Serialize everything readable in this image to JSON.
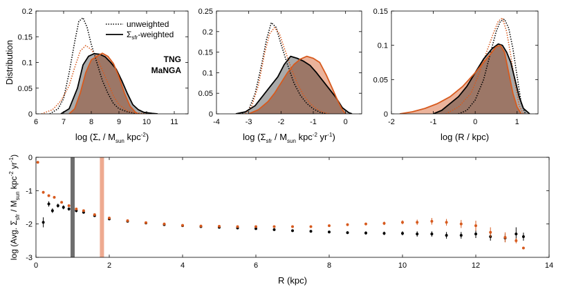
{
  "colors": {
    "tng": "#000000",
    "manga": "#d75a1e",
    "tng_fill": "#9a9a9a",
    "manga_fill": "#e8a68a",
    "overlap_fill": "#94705f",
    "tng_band": "#6e6e6e",
    "manga_band": "#eeaa90"
  },
  "legend": {
    "unweighted": "unweighted",
    "weighted_sigma": "Σ",
    "weighted_sub": "sfr",
    "weighted_rest": "-weighted",
    "tng": "TNG",
    "manga": "MaNGA"
  },
  "chart_data": [
    {
      "type": "area",
      "title": "",
      "ylabel": "Distribution",
      "xlabel_parts": [
        "log (Σ",
        "*",
        " / M",
        "sun",
        " kpc",
        "-2",
        ")"
      ],
      "xlim": [
        6,
        11.5
      ],
      "ylim": [
        0,
        0.2
      ],
      "xticks": [
        6,
        7,
        8,
        9,
        10,
        11
      ],
      "yticks": [
        0,
        0.05,
        0.1,
        0.15,
        0.2
      ],
      "xtick_labels": [
        "6",
        "7",
        "8",
        "9",
        "10",
        "11"
      ],
      "ytick_labels": [
        "0",
        "0.05",
        "0.1",
        "0.15",
        "0.2"
      ],
      "series": [
        {
          "name": "TNG unweighted",
          "style": "dotted",
          "color": "tng",
          "x": [
            6.5,
            6.8,
            7.0,
            7.2,
            7.4,
            7.55,
            7.7,
            7.85,
            8.0,
            8.2,
            8.4,
            8.6,
            8.8,
            9.0,
            9.3,
            9.6,
            10.0
          ],
          "y": [
            0,
            0.01,
            0.03,
            0.08,
            0.14,
            0.18,
            0.187,
            0.168,
            0.135,
            0.1,
            0.065,
            0.04,
            0.02,
            0.01,
            0.004,
            0.001,
            0
          ]
        },
        {
          "name": "MaNGA unweighted",
          "style": "dotted",
          "color": "manga",
          "x": [
            6.2,
            6.6,
            6.9,
            7.2,
            7.4,
            7.6,
            7.8,
            8.0,
            8.2,
            8.4,
            8.6,
            8.8,
            9.0,
            9.3,
            9.6,
            10.0
          ],
          "y": [
            0,
            0.008,
            0.025,
            0.055,
            0.09,
            0.122,
            0.133,
            0.125,
            0.11,
            0.085,
            0.06,
            0.035,
            0.018,
            0.006,
            0.002,
            0
          ]
        },
        {
          "name": "TNG Σsfr-weighted",
          "style": "solid",
          "color": "tng",
          "fill": "tng_fill",
          "x": [
            6.9,
            7.2,
            7.5,
            7.7,
            7.9,
            8.1,
            8.3,
            8.5,
            8.7,
            8.9,
            9.1,
            9.3,
            9.5,
            9.7,
            9.9,
            10.2,
            10.4
          ],
          "y": [
            0,
            0.01,
            0.05,
            0.095,
            0.112,
            0.117,
            0.116,
            0.111,
            0.1,
            0.087,
            0.065,
            0.04,
            0.018,
            0.008,
            0.003,
            0.001,
            0
          ]
        },
        {
          "name": "MaNGA Σsfr-weighted",
          "style": "solid",
          "color": "manga",
          "fill": "manga_fill",
          "x": [
            7.2,
            7.4,
            7.6,
            7.8,
            8.0,
            8.2,
            8.4,
            8.6,
            8.8,
            9.0,
            9.2,
            9.4,
            9.6,
            9.7
          ],
          "y": [
            0,
            0.01,
            0.04,
            0.08,
            0.105,
            0.112,
            0.118,
            0.112,
            0.098,
            0.072,
            0.04,
            0.015,
            0.003,
            0
          ]
        }
      ]
    },
    {
      "type": "area",
      "title": "",
      "ylabel": "",
      "xlabel_parts": [
        "log (Σ",
        "sfr",
        " / M",
        "sun",
        " kpc",
        "-2",
        " yr",
        "-1",
        ")"
      ],
      "xlim": [
        -4,
        0.5
      ],
      "ylim": [
        0,
        0.25
      ],
      "xticks": [
        -4,
        -3,
        -2,
        -1,
        0
      ],
      "yticks": [
        0,
        0.05,
        0.1,
        0.15,
        0.2,
        0.25
      ],
      "xtick_labels": [
        "-4",
        "-3",
        "-2",
        "-1",
        "0"
      ],
      "ytick_labels": [
        "0",
        "0.05",
        "0.1",
        "0.15",
        "0.2",
        "0.25"
      ],
      "series": [
        {
          "name": "TNG unweighted",
          "style": "dotted",
          "color": "tng",
          "x": [
            -3.2,
            -3.0,
            -2.8,
            -2.6,
            -2.45,
            -2.3,
            -2.15,
            -2.0,
            -1.8,
            -1.6,
            -1.4,
            -1.2,
            -1.0,
            -0.8,
            -0.6
          ],
          "y": [
            0,
            0.01,
            0.05,
            0.12,
            0.18,
            0.222,
            0.21,
            0.17,
            0.12,
            0.075,
            0.045,
            0.025,
            0.012,
            0.004,
            0
          ]
        },
        {
          "name": "MaNGA unweighted",
          "style": "dotted",
          "color": "manga",
          "x": [
            -3.1,
            -2.9,
            -2.7,
            -2.5,
            -2.35,
            -2.2,
            -2.05,
            -1.9,
            -1.7,
            -1.5,
            -1.3,
            -1.1,
            -0.9,
            -0.7,
            -0.5
          ],
          "y": [
            0,
            0.02,
            0.07,
            0.15,
            0.195,
            0.21,
            0.195,
            0.16,
            0.115,
            0.075,
            0.045,
            0.025,
            0.012,
            0.004,
            0
          ]
        },
        {
          "name": "TNG Σsfr-weighted",
          "style": "solid",
          "color": "tng",
          "fill": "tng_fill",
          "x": [
            -3.4,
            -3.1,
            -2.8,
            -2.5,
            -2.3,
            -2.1,
            -1.9,
            -1.7,
            -1.5,
            -1.3,
            -1.1,
            -0.9,
            -0.7,
            -0.5,
            -0.3,
            -0.1,
            0.1,
            0.2
          ],
          "y": [
            0,
            0.005,
            0.02,
            0.05,
            0.07,
            0.09,
            0.12,
            0.14,
            0.135,
            0.128,
            0.118,
            0.1,
            0.08,
            0.06,
            0.04,
            0.015,
            0.003,
            0
          ]
        },
        {
          "name": "MaNGA Σsfr-weighted",
          "style": "solid",
          "color": "manga",
          "fill": "manga_fill",
          "x": [
            -3.0,
            -2.7,
            -2.4,
            -2.2,
            -2.0,
            -1.8,
            -1.6,
            -1.4,
            -1.2,
            -1.0,
            -0.8,
            -0.6,
            -0.4,
            -0.3,
            -0.2,
            -0.1,
            0.0
          ],
          "y": [
            0,
            0.01,
            0.03,
            0.05,
            0.075,
            0.1,
            0.12,
            0.133,
            0.14,
            0.135,
            0.125,
            0.095,
            0.06,
            0.042,
            0.025,
            0.01,
            0
          ]
        }
      ]
    },
    {
      "type": "area",
      "title": "",
      "ylabel": "",
      "xlabel_parts": [
        "log (R / kpc)"
      ],
      "xlim": [
        -2,
        1.5
      ],
      "ylim": [
        0,
        0.15
      ],
      "xticks": [
        -2,
        -1,
        0,
        1
      ],
      "yticks": [
        0,
        0.05,
        0.1,
        0.15
      ],
      "xtick_labels": [
        "-2",
        "-1",
        "0",
        "1"
      ],
      "ytick_labels": [
        "0",
        "0.05",
        "0.1",
        "0.15"
      ],
      "series": [
        {
          "name": "TNG unweighted",
          "style": "dotted",
          "color": "tng",
          "x": [
            -0.4,
            -0.2,
            0.0,
            0.2,
            0.35,
            0.5,
            0.6,
            0.7,
            0.8,
            0.9,
            1.0,
            1.1,
            1.2
          ],
          "y": [
            0,
            0.005,
            0.02,
            0.05,
            0.085,
            0.12,
            0.135,
            0.138,
            0.125,
            0.095,
            0.055,
            0.015,
            0
          ]
        },
        {
          "name": "MaNGA unweighted",
          "style": "dotted",
          "color": "manga",
          "x": [
            -0.7,
            -0.4,
            -0.1,
            0.1,
            0.3,
            0.45,
            0.55,
            0.65,
            0.75,
            0.85,
            0.95,
            1.05,
            1.15
          ],
          "y": [
            0,
            0.01,
            0.03,
            0.06,
            0.095,
            0.12,
            0.135,
            0.14,
            0.12,
            0.085,
            0.045,
            0.012,
            0
          ]
        },
        {
          "name": "TNG Σsfr-weighted",
          "style": "solid",
          "color": "tng",
          "fill": "tng_fill",
          "x": [
            -1.0,
            -0.8,
            -0.6,
            -0.4,
            -0.2,
            0.0,
            0.2,
            0.4,
            0.55,
            0.65,
            0.75,
            0.85,
            0.95,
            1.05,
            1.15,
            1.3
          ],
          "y": [
            0,
            0.005,
            0.015,
            0.025,
            0.04,
            0.06,
            0.08,
            0.095,
            0.102,
            0.1,
            0.09,
            0.075,
            0.05,
            0.025,
            0.008,
            0
          ]
        },
        {
          "name": "MaNGA Σsfr-weighted",
          "style": "solid",
          "color": "manga",
          "fill": "manga_fill",
          "x": [
            -1.8,
            -1.5,
            -1.2,
            -0.9,
            -0.6,
            -0.3,
            0.0,
            0.2,
            0.4,
            0.5,
            0.6,
            0.7,
            0.8,
            0.9,
            1.0,
            1.1
          ],
          "y": [
            0,
            0.003,
            0.008,
            0.015,
            0.025,
            0.04,
            0.06,
            0.075,
            0.09,
            0.098,
            0.1,
            0.09,
            0.06,
            0.03,
            0.01,
            0
          ]
        }
      ]
    },
    {
      "type": "scatter",
      "title": "",
      "xlabel": "R (kpc)",
      "ylabel_parts": [
        "log (Avg. Σ",
        "sfr",
        " / M",
        "sun",
        " kpc",
        "-2",
        " yr",
        "-1",
        ")"
      ],
      "xlim": [
        0,
        14
      ],
      "ylim": [
        -3,
        0
      ],
      "xticks": [
        0,
        2,
        4,
        6,
        8,
        10,
        12,
        14
      ],
      "yticks": [
        -3,
        -2,
        -1,
        0
      ],
      "xtick_labels": [
        "0",
        "2",
        "4",
        "6",
        "8",
        "10",
        "12",
        "14"
      ],
      "ytick_labels": [
        "-3",
        "-2",
        "-1",
        "0"
      ],
      "bands": [
        {
          "name": "TNG characteristic radius",
          "x": 1.0,
          "color": "tng_band"
        },
        {
          "name": "MaNGA characteristic radius",
          "x": 1.8,
          "color": "manga_band"
        }
      ],
      "series": [
        {
          "name": "TNG",
          "color": "tng",
          "x": [
            0.2,
            0.35,
            0.45,
            0.6,
            0.75,
            0.9,
            1.1,
            1.3,
            1.6,
            2.0,
            2.5,
            3.0,
            3.5,
            4.0,
            4.5,
            5.0,
            5.5,
            6.0,
            6.5,
            7.0,
            7.5,
            8.0,
            8.5,
            9.0,
            9.5,
            10.0,
            10.4,
            10.8,
            11.2,
            11.6,
            12.0,
            12.4,
            12.8,
            13.1,
            13.3
          ],
          "y": [
            -1.95,
            -1.4,
            -1.6,
            -1.45,
            -1.5,
            -1.55,
            -1.6,
            -1.65,
            -1.75,
            -1.85,
            -1.92,
            -1.97,
            -2.02,
            -2.05,
            -2.08,
            -2.1,
            -2.12,
            -2.14,
            -2.17,
            -2.2,
            -2.22,
            -2.24,
            -2.26,
            -2.27,
            -2.28,
            -2.28,
            -2.3,
            -2.3,
            -2.34,
            -2.34,
            -2.3,
            -2.38,
            -2.42,
            -2.3,
            -2.38
          ],
          "err": [
            0.15,
            0.08,
            0.07,
            0.06,
            0.06,
            0.05,
            0.05,
            0.04,
            0.04,
            0.03,
            0.03,
            0.03,
            0.03,
            0.03,
            0.03,
            0.03,
            0.03,
            0.03,
            0.03,
            0.03,
            0.03,
            0.04,
            0.04,
            0.05,
            0.05,
            0.06,
            0.08,
            0.08,
            0.1,
            0.1,
            0.12,
            0.12,
            0.12,
            0.2,
            0.12
          ]
        },
        {
          "name": "MaNGA",
          "color": "manga",
          "x": [
            0.05,
            0.2,
            0.35,
            0.5,
            0.7,
            0.9,
            1.1,
            1.3,
            1.6,
            2.0,
            2.5,
            3.0,
            3.5,
            4.0,
            4.5,
            5.0,
            5.5,
            6.0,
            6.5,
            7.0,
            7.5,
            8.0,
            8.5,
            9.0,
            9.5,
            10.0,
            10.4,
            10.8,
            11.2,
            11.6,
            12.0,
            12.4,
            12.8,
            13.1,
            13.3
          ],
          "y": [
            -0.15,
            -1.05,
            -1.15,
            -1.2,
            -1.35,
            -1.45,
            -1.55,
            -1.6,
            -1.72,
            -1.82,
            -1.9,
            -1.96,
            -2.0,
            -2.04,
            -2.06,
            -2.07,
            -2.08,
            -2.08,
            -2.08,
            -2.08,
            -2.08,
            -2.05,
            -2.02,
            -2.0,
            -1.98,
            -1.95,
            -1.95,
            -1.92,
            -1.95,
            -2.0,
            -2.05,
            -2.25,
            -2.4,
            -2.5,
            -2.72
          ],
          "err": [
            0.02,
            0.04,
            0.04,
            0.03,
            0.03,
            0.03,
            0.03,
            0.03,
            0.02,
            0.02,
            0.02,
            0.02,
            0.02,
            0.02,
            0.02,
            0.02,
            0.02,
            0.02,
            0.02,
            0.02,
            0.03,
            0.03,
            0.04,
            0.04,
            0.05,
            0.06,
            0.08,
            0.1,
            0.1,
            0.12,
            0.15,
            0.15,
            0.15,
            0.08,
            0.03
          ]
        }
      ]
    }
  ]
}
